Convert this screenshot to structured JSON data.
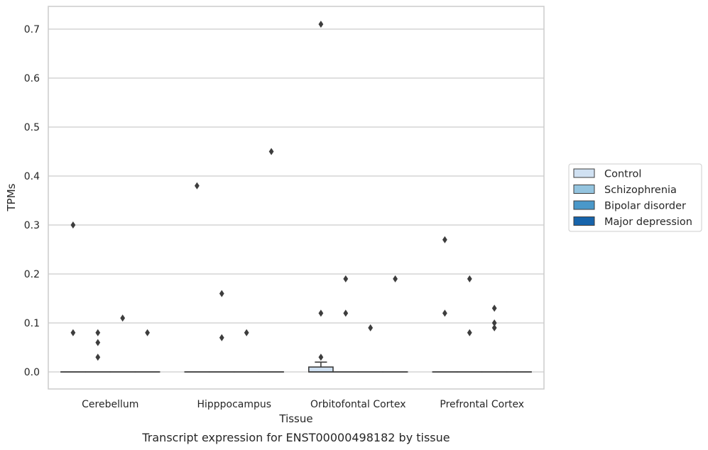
{
  "chart_data": {
    "type": "boxplot",
    "title": "",
    "caption": "Transcript expression for ENST00000498182 by tissue",
    "xlabel": "Tissue",
    "ylabel": "TPMs",
    "ylim": [
      -0.035,
      0.745
    ],
    "yticks": [
      0.0,
      0.1,
      0.2,
      0.3,
      0.4,
      0.5,
      0.6,
      0.7
    ],
    "ytick_labels": [
      "0.0",
      "0.1",
      "0.2",
      "0.3",
      "0.4",
      "0.5",
      "0.6",
      "0.7"
    ],
    "grid": true,
    "legend_position": "right",
    "categories": [
      "Cerebellum",
      "Hipppocampus",
      "Orbitofontal Cortex",
      "Prefrontal Cortex"
    ],
    "series": [
      {
        "name": "Control",
        "color": "#d0e1f2",
        "boxes": [
          {
            "q1": 0,
            "median": 0,
            "q3": 0,
            "whislo": 0,
            "whishi": 0,
            "fliers": [
              0.3,
              0.08
            ]
          },
          {
            "q1": 0,
            "median": 0,
            "q3": 0,
            "whislo": 0,
            "whishi": 0,
            "fliers": [
              0.38
            ]
          },
          {
            "q1": 0,
            "median": 0,
            "q3": 0.01,
            "whislo": 0,
            "whishi": 0.02,
            "fliers": [
              0.71,
              0.12,
              0.03
            ]
          },
          {
            "q1": 0,
            "median": 0,
            "q3": 0,
            "whislo": 0,
            "whishi": 0,
            "fliers": [
              0.27,
              0.12
            ]
          }
        ]
      },
      {
        "name": "Schizophrenia",
        "color": "#94c4df",
        "boxes": [
          {
            "q1": 0,
            "median": 0,
            "q3": 0,
            "whislo": 0,
            "whishi": 0,
            "fliers": [
              0.08,
              0.06,
              0.03
            ]
          },
          {
            "q1": 0,
            "median": 0,
            "q3": 0,
            "whislo": 0,
            "whishi": 0,
            "fliers": [
              0.16,
              0.07
            ]
          },
          {
            "q1": 0,
            "median": 0,
            "q3": 0,
            "whislo": 0,
            "whishi": 0,
            "fliers": [
              0.19,
              0.12
            ]
          },
          {
            "q1": 0,
            "median": 0,
            "q3": 0,
            "whislo": 0,
            "whishi": 0,
            "fliers": [
              0.19,
              0.08
            ]
          }
        ]
      },
      {
        "name": "Bipolar disorder",
        "color": "#4a98c9",
        "boxes": [
          {
            "q1": 0,
            "median": 0,
            "q3": 0,
            "whislo": 0,
            "whishi": 0,
            "fliers": [
              0.11
            ]
          },
          {
            "q1": 0,
            "median": 0,
            "q3": 0,
            "whislo": 0,
            "whishi": 0,
            "fliers": [
              0.08
            ]
          },
          {
            "q1": 0,
            "median": 0,
            "q3": 0,
            "whislo": 0,
            "whishi": 0,
            "fliers": [
              0.09
            ]
          },
          {
            "q1": 0,
            "median": 0,
            "q3": 0,
            "whislo": 0,
            "whishi": 0,
            "fliers": [
              0.13,
              0.1,
              0.09
            ]
          }
        ]
      },
      {
        "name": "Major depression",
        "color": "#1764ab",
        "boxes": [
          {
            "q1": 0,
            "median": 0,
            "q3": 0,
            "whislo": 0,
            "whishi": 0,
            "fliers": [
              0.08
            ]
          },
          {
            "q1": 0,
            "median": 0,
            "q3": 0,
            "whislo": 0,
            "whishi": 0,
            "fliers": [
              0.45
            ]
          },
          {
            "q1": 0,
            "median": 0,
            "q3": 0,
            "whislo": 0,
            "whishi": 0,
            "fliers": [
              0.19
            ]
          },
          {
            "q1": 0,
            "median": 0,
            "q3": 0,
            "whislo": 0,
            "whishi": 0,
            "fliers": []
          }
        ]
      }
    ]
  }
}
